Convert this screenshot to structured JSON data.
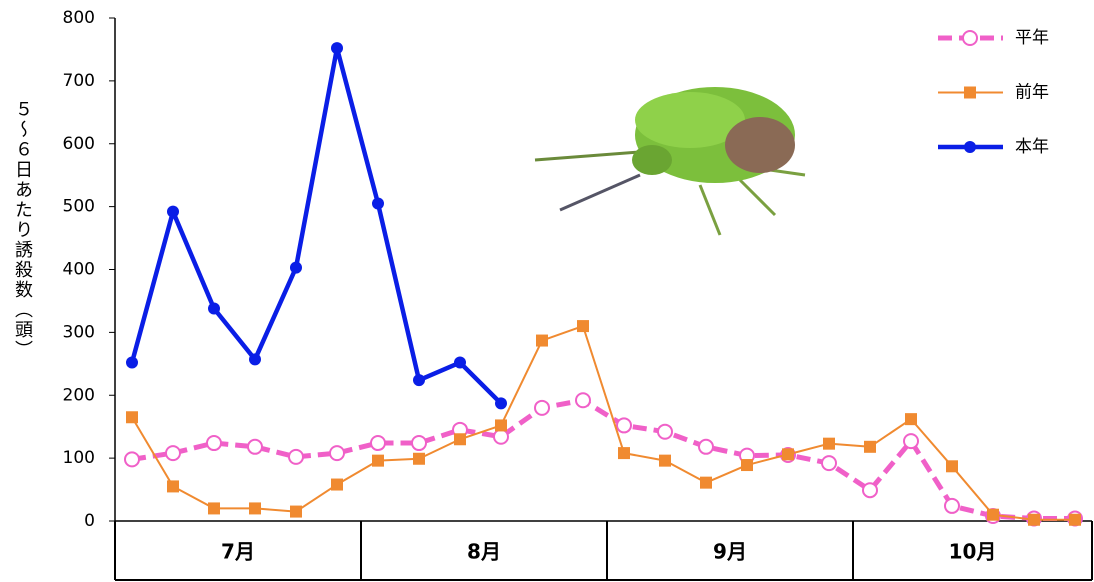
{
  "chart_data": {
    "type": "line",
    "y_label": "５～６日あたり誘殺数（頭）",
    "categories": [
      null,
      null,
      null,
      null,
      null,
      null,
      null,
      null,
      null,
      null,
      null,
      null,
      null,
      null,
      null,
      null,
      null,
      null,
      null,
      null,
      null,
      null,
      null,
      null
    ],
    "month_labels": [
      "7月",
      "8月",
      "9月",
      "10月"
    ],
    "ylim": [
      0,
      800
    ],
    "yticks": [
      0,
      100,
      200,
      300,
      400,
      500,
      600,
      700,
      800
    ],
    "grid": false,
    "legend": "top-right",
    "series": [
      {
        "name": "平年",
        "color": "#f060c8",
        "marker": "open-circle",
        "line_style": "dashed",
        "line_width": 5,
        "values": [
          98,
          108,
          124,
          118,
          102,
          108,
          124,
          124,
          145,
          134,
          180,
          192,
          152,
          142,
          118,
          104,
          105,
          92,
          49,
          127,
          24,
          8,
          4,
          4
        ]
      },
      {
        "name": "前年",
        "color": "#f08a30",
        "marker": "square",
        "line_style": "solid",
        "line_width": 2,
        "values": [
          165,
          55,
          20,
          20,
          15,
          58,
          96,
          99,
          130,
          152,
          287,
          310,
          108,
          96,
          61,
          89,
          106,
          123,
          118,
          162,
          87,
          10,
          2,
          2
        ]
      },
      {
        "name": "本年",
        "color": "#0a1ee6",
        "marker": "circle",
        "line_style": "solid",
        "line_width": 4.5,
        "values": [
          252,
          492,
          338,
          257,
          403,
          752,
          505,
          224,
          252,
          187,
          null,
          null,
          null,
          null,
          null,
          null,
          null,
          null,
          null,
          null,
          null,
          null,
          null,
          null
        ]
      }
    ]
  }
}
